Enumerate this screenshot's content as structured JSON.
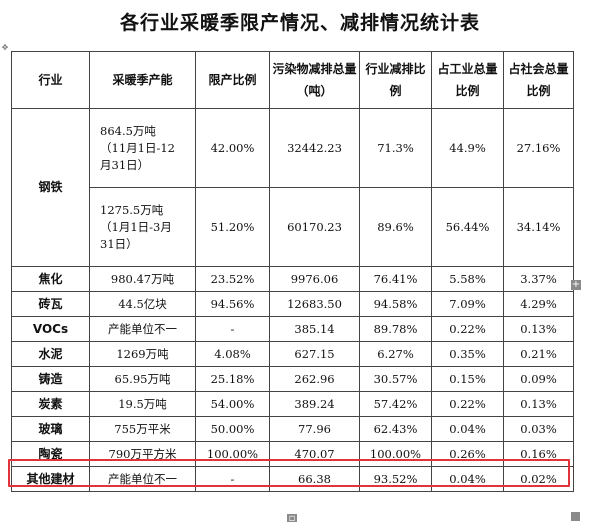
{
  "title": "各行业采暖季限产情况、减排情况统计表",
  "headers": [
    "行业",
    "采暖季产能",
    "限产比例",
    "污染物减排总量（吨）",
    "行业减排比例",
    "占工业总量比例",
    "占社会总量比例"
  ],
  "steel": {
    "industry": "钢铁",
    "r1": {
      "cap_lines": [
        "864.5万吨",
        "（11月1日-12",
        "月31日）"
      ],
      "limit": "42.00%",
      "total": "32442.23",
      "ratio": "71.3%",
      "ind": "44.9%",
      "soc": "27.16%"
    },
    "r2": {
      "cap_lines": [
        "1275.5万吨",
        "（1月1日-3月",
        "31日）"
      ],
      "limit": "51.20%",
      "total": "60170.23",
      "ratio": "89.6%",
      "ind": "56.44%",
      "soc": "34.14%"
    }
  },
  "rows": [
    {
      "industry": "焦化",
      "capacity": "980.47万吨",
      "limit": "23.52%",
      "total": "9976.06",
      "ratio": "76.41%",
      "ind": "5.58%",
      "soc": "3.37%"
    },
    {
      "industry": "砖瓦",
      "capacity": "44.5亿块",
      "limit": "94.56%",
      "total": "12683.50",
      "ratio": "94.58%",
      "ind": "7.09%",
      "soc": "4.29%"
    },
    {
      "industry": "VOCs",
      "capacity": "产能单位不一",
      "limit": "-",
      "total": "385.14",
      "ratio": "89.78%",
      "ind": "0.22%",
      "soc": "0.13%"
    },
    {
      "industry": "水泥",
      "capacity": "1269万吨",
      "limit": "4.08%",
      "total": "627.15",
      "ratio": "6.27%",
      "ind": "0.35%",
      "soc": "0.21%"
    },
    {
      "industry": "铸造",
      "capacity": "65.95万吨",
      "limit": "25.18%",
      "total": "262.96",
      "ratio": "30.57%",
      "ind": "0.15%",
      "soc": "0.09%"
    },
    {
      "industry": "炭素",
      "capacity": "19.5万吨",
      "limit": "54.00%",
      "total": "389.24",
      "ratio": "57.42%",
      "ind": "0.22%",
      "soc": "0.13%"
    },
    {
      "industry": "玻璃",
      "capacity": "755万平米",
      "limit": "50.00%",
      "total": "77.96",
      "ratio": "62.43%",
      "ind": "0.04%",
      "soc": "0.03%"
    },
    {
      "industry": "陶瓷",
      "capacity": "790万平方米",
      "limit": "100.00%",
      "total": "470.07",
      "ratio": "100.00%",
      "ind": "0.26%",
      "soc": "0.16%"
    },
    {
      "industry": "其他建材",
      "capacity": "产能单位不一",
      "limit": "-",
      "total": "66.38",
      "ratio": "93.52%",
      "ind": "0.04%",
      "soc": "0.02%"
    }
  ],
  "highlight_color": "#e0343a"
}
